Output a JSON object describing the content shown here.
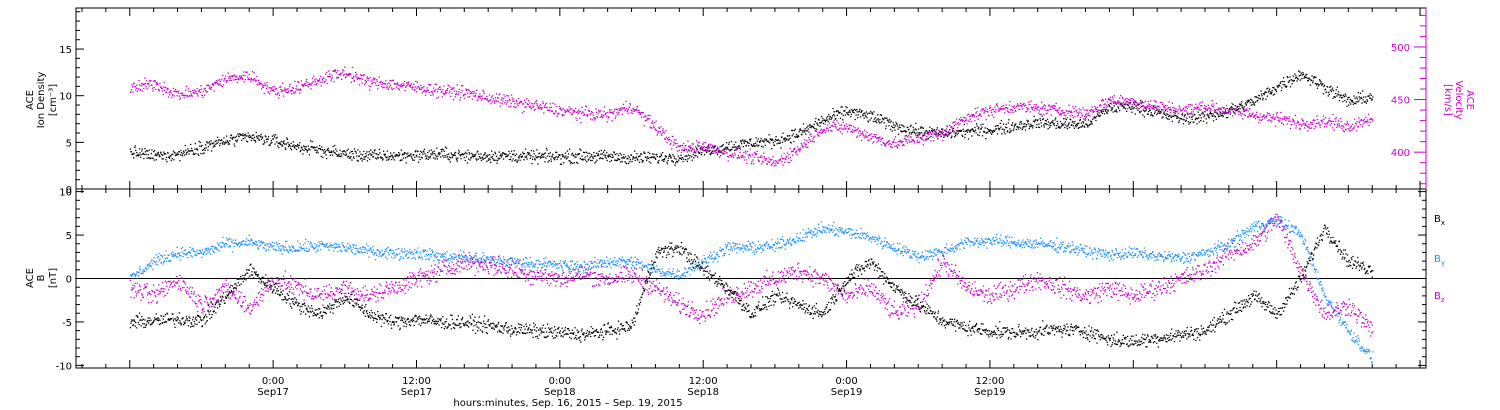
{
  "chart_data": [
    {
      "type": "scatter",
      "panel": "top",
      "ylabel_left": [
        "ACE",
        "Ion Density",
        "[cm⁻³]"
      ],
      "ylabel_right": [
        "ACE",
        "Velocity",
        "[km/s]"
      ],
      "ylim_left": [
        0,
        19.4
      ],
      "yticks_left": [
        0,
        5,
        10,
        15
      ],
      "ylim_right": [
        365,
        537
      ],
      "yticks_right": [
        400,
        450,
        500
      ],
      "right_axis_color": "#cc00cc",
      "series": [
        {
          "axis": "left",
          "color": "#000000",
          "x": [
            0,
            2,
            4,
            6,
            8,
            10,
            12,
            14,
            16,
            18,
            20,
            22,
            24,
            26,
            28,
            30,
            32,
            34,
            36,
            38,
            40,
            42,
            44,
            46,
            48,
            50,
            52,
            54,
            56,
            58,
            60,
            62,
            64,
            66,
            68,
            70,
            72,
            74,
            76,
            78,
            80,
            82,
            84,
            86,
            88,
            90,
            92,
            94,
            96,
            98,
            100,
            102,
            104
          ],
          "y": [
            4.0,
            3.6,
            3.8,
            4.6,
            5.2,
            5.6,
            5.2,
            4.6,
            4.2,
            3.8,
            3.6,
            3.6,
            3.7,
            3.8,
            3.6,
            3.6,
            3.6,
            3.5,
            3.5,
            3.6,
            3.5,
            3.4,
            3.4,
            3.5,
            4.2,
            4.6,
            5.0,
            5.2,
            6.0,
            7.4,
            8.4,
            7.8,
            6.8,
            6.2,
            6.0,
            6.2,
            6.4,
            6.8,
            7.2,
            7.0,
            7.0,
            8.8,
            9.0,
            8.2,
            7.6,
            7.8,
            8.4,
            9.4,
            11.0,
            12.4,
            11.0,
            9.4,
            10.0
          ],
          "spread": 1.0
        },
        {
          "axis": "right",
          "color": "#cc00cc",
          "x": [
            0,
            2,
            4,
            6,
            8,
            10,
            12,
            14,
            16,
            18,
            20,
            22,
            24,
            26,
            28,
            30,
            32,
            34,
            36,
            38,
            40,
            42,
            44,
            46,
            48,
            50,
            52,
            54,
            56,
            58,
            60,
            62,
            64,
            66,
            68,
            70,
            72,
            74,
            76,
            78,
            80,
            82,
            84,
            86,
            88,
            90,
            92,
            94,
            96,
            98,
            100,
            102,
            104
          ],
          "y": [
            460,
            466,
            455,
            458,
            470,
            473,
            458,
            462,
            470,
            476,
            467,
            465,
            462,
            459,
            457,
            452,
            448,
            444,
            440,
            437,
            436,
            444,
            424,
            404,
            406,
            400,
            396,
            390,
            404,
            424,
            424,
            415,
            408,
            414,
            418,
            434,
            440,
            444,
            442,
            440,
            437,
            450,
            448,
            444,
            440,
            444,
            440,
            436,
            432,
            428,
            430,
            425,
            434
          ],
          "spread": 9
        }
      ]
    },
    {
      "type": "scatter",
      "panel": "bottom",
      "ylabel_left": [
        "ACE",
        "B",
        "[nT]"
      ],
      "ylim": [
        -10.3,
        10.3
      ],
      "yticks": [
        -10,
        -5,
        0,
        5,
        10
      ],
      "zero_line": true,
      "legend": [
        {
          "label": "B",
          "sub": "x",
          "color": "#000000"
        },
        {
          "label": "B",
          "sub": "y",
          "color": "#1e90ff"
        },
        {
          "label": "B",
          "sub": "z",
          "color": "#cc00cc"
        }
      ],
      "series": [
        {
          "name": "Bx",
          "color": "#000000",
          "x": [
            0,
            2,
            4,
            6,
            8,
            10,
            12,
            14,
            16,
            18,
            20,
            22,
            24,
            26,
            28,
            30,
            32,
            34,
            36,
            38,
            40,
            42,
            44,
            46,
            48,
            50,
            52,
            54,
            56,
            58,
            60,
            62,
            64,
            66,
            68,
            70,
            72,
            74,
            76,
            78,
            80,
            82,
            84,
            86,
            88,
            90,
            92,
            94,
            96,
            98,
            100,
            102,
            104
          ],
          "y": [
            -5.0,
            -4.8,
            -4.6,
            -4.8,
            -2.0,
            1.0,
            -1.0,
            -3.0,
            -4.0,
            -2.0,
            -4.0,
            -5.0,
            -4.6,
            -5.0,
            -5.0,
            -5.4,
            -5.8,
            -6.0,
            -6.2,
            -6.4,
            -6.0,
            -5.4,
            3.0,
            3.6,
            1.0,
            -1.0,
            -4.0,
            -2.0,
            -3.0,
            -4.0,
            0.0,
            2.0,
            -1.0,
            -3.0,
            -4.8,
            -5.6,
            -6.0,
            -6.2,
            -6.0,
            -5.8,
            -6.0,
            -7.0,
            -7.2,
            -6.8,
            -6.4,
            -6.0,
            -4.0,
            -2.0,
            -4.0,
            0.0,
            6.0,
            2.0,
            1.0
          ],
          "spread": 1.2
        },
        {
          "name": "By",
          "color": "#1e90ff",
          "x": [
            0,
            2,
            4,
            6,
            8,
            10,
            12,
            14,
            16,
            18,
            20,
            22,
            24,
            26,
            28,
            30,
            32,
            34,
            36,
            38,
            40,
            42,
            44,
            46,
            48,
            50,
            52,
            54,
            56,
            58,
            60,
            62,
            64,
            66,
            68,
            70,
            72,
            74,
            76,
            78,
            80,
            82,
            84,
            86,
            88,
            90,
            92,
            94,
            96,
            98,
            100,
            102,
            104
          ],
          "y": [
            0.0,
            2.0,
            3.0,
            3.0,
            4.0,
            4.2,
            3.6,
            3.6,
            3.8,
            3.6,
            3.2,
            3.0,
            3.0,
            2.6,
            2.4,
            2.2,
            2.0,
            1.8,
            1.6,
            1.4,
            2.0,
            2.0,
            1.0,
            0.5,
            2.0,
            3.6,
            3.6,
            3.8,
            4.8,
            5.8,
            5.4,
            4.8,
            3.6,
            2.6,
            3.2,
            4.2,
            4.4,
            4.2,
            4.0,
            3.8,
            3.2,
            2.8,
            3.0,
            2.6,
            2.4,
            3.0,
            4.0,
            6.0,
            6.8,
            5.2,
            -2.0,
            -6.0,
            -9.2
          ],
          "spread": 1.0
        },
        {
          "name": "Bz",
          "color": "#cc00cc",
          "x": [
            0,
            2,
            4,
            6,
            8,
            10,
            12,
            14,
            16,
            18,
            20,
            22,
            24,
            26,
            28,
            30,
            32,
            34,
            36,
            38,
            40,
            42,
            44,
            46,
            48,
            50,
            52,
            54,
            56,
            58,
            60,
            62,
            64,
            66,
            68,
            70,
            72,
            74,
            76,
            78,
            80,
            82,
            84,
            86,
            88,
            90,
            92,
            94,
            96,
            98,
            100,
            102,
            104
          ],
          "y": [
            -1.0,
            -2.0,
            0.0,
            -3.0,
            -1.0,
            -3.4,
            0.0,
            -1.0,
            -2.0,
            -1.0,
            -2.0,
            -1.0,
            0.0,
            1.0,
            2.0,
            1.6,
            1.0,
            0.5,
            0.0,
            0.6,
            0.0,
            0.5,
            -1.0,
            -3.0,
            -4.0,
            -2.0,
            -1.0,
            0.0,
            1.0,
            0.0,
            -2.0,
            -1.0,
            -4.0,
            -3.0,
            2.0,
            -1.0,
            -2.0,
            -1.0,
            0.0,
            -1.0,
            -2.0,
            -1.0,
            -2.0,
            -1.0,
            0.0,
            1.0,
            3.0,
            4.0,
            7.0,
            1.0,
            -4.0,
            -3.0,
            -6.0
          ],
          "spread": 1.6
        }
      ]
    }
  ],
  "x_axis": {
    "range_hours": [
      -4.5,
      108.5
    ],
    "ticks": [
      {
        "h": 12,
        "time": "0:00",
        "date": "Sep17"
      },
      {
        "h": 24,
        "time": "12:00",
        "date": "Sep17"
      },
      {
        "h": 36,
        "time": "0:00",
        "date": "Sep18"
      },
      {
        "h": 48,
        "time": "12:00",
        "date": "Sep18"
      },
      {
        "h": 60,
        "time": "0:00",
        "date": "Sep19"
      },
      {
        "h": 72,
        "time": "12:00",
        "date": "Sep19"
      }
    ],
    "label": "hours:minutes, Sep. 16, 2015 – Sep. 19, 2015"
  }
}
